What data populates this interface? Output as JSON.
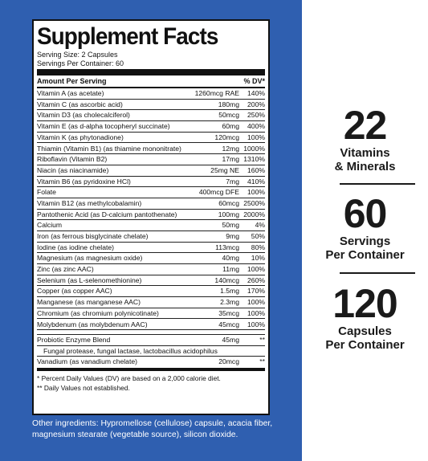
{
  "label": {
    "title": "Supplement Facts",
    "serving_size": "Serving Size: 2 Capsules",
    "servings_per_container": "Servings Per Container: 60",
    "header_amount": "Amount Per Serving",
    "header_dv": "% DV*",
    "nutrients": [
      {
        "name": "Vitamin A (as acetate)",
        "amount": "1260mcg RAE",
        "dv": "140%"
      },
      {
        "name": "Vitamin C (as ascorbic acid)",
        "amount": "180mg",
        "dv": "200%"
      },
      {
        "name": "Vitamin D3 (as cholecalciferol)",
        "amount": "50mcg",
        "dv": "250%"
      },
      {
        "name": "Vitamin E (as d-alpha tocopheryl succinate)",
        "amount": "60mg",
        "dv": "400%"
      },
      {
        "name": "Vitamin K (as phytonadione)",
        "amount": "120mcg",
        "dv": "100%"
      },
      {
        "name": "Thiamin (Vitamin B1) (as thiamine mononitrate)",
        "amount": "12mg",
        "dv": "1000%"
      },
      {
        "name": "Riboflavin (Vitamin B2)",
        "amount": "17mg",
        "dv": "1310%"
      },
      {
        "name": "Niacin (as niacinamide)",
        "amount": "25mg NE",
        "dv": "160%"
      },
      {
        "name": "Vitamin B6 (as pyridoxine HCl)",
        "amount": "7mg",
        "dv": "410%"
      },
      {
        "name": "Folate",
        "amount": "400mcg DFE",
        "dv": "100%"
      },
      {
        "name": "Vitamin B12 (as methylcobalamin)",
        "amount": "60mcg",
        "dv": "2500%"
      },
      {
        "name": "Pantothenic Acid (as D-calcium pantothenate)",
        "amount": "100mg",
        "dv": "2000%"
      },
      {
        "name": "Calcium",
        "amount": "50mg",
        "dv": "4%"
      },
      {
        "name": "Iron (as ferrous bisglycinate chelate)",
        "amount": "9mg",
        "dv": "50%"
      },
      {
        "name": "Iodine (as iodine chelate)",
        "amount": "113mcg",
        "dv": "80%"
      },
      {
        "name": "Magnesium (as magnesium oxide)",
        "amount": "40mg",
        "dv": "10%"
      },
      {
        "name": "Zinc (as zinc AAC)",
        "amount": "11mg",
        "dv": "100%"
      },
      {
        "name": "Selenium (as L-selenomethionine)",
        "amount": "140mcg",
        "dv": "260%"
      },
      {
        "name": "Copper (as copper AAC)",
        "amount": "1.5mg",
        "dv": "170%"
      },
      {
        "name": "Manganese (as manganese AAC)",
        "amount": "2.3mg",
        "dv": "100%"
      },
      {
        "name": "Chromium (as chromium polynicotinate)",
        "amount": "35mcg",
        "dv": "100%"
      },
      {
        "name": "Molybdenum (as molybdenum AAC)",
        "amount": "45mcg",
        "dv": "100%"
      }
    ],
    "probiotic": {
      "name": "Probiotic Enzyme Blend",
      "amount": "45mg",
      "dv": "**"
    },
    "probiotic_sub": "Fungal protease, fungal lactase, lactobacillus acidophilus",
    "vanadium": {
      "name": "Vanadium (as vanadium chelate)",
      "amount": "20mcg",
      "dv": "**"
    },
    "footnote_1": "* Percent Daily Values (DV) are based on a 2,000 calorie diet.",
    "footnote_2": "** Daily Values not established."
  },
  "other_ingredients": "Other ingredients: Hypromellose (cellulose) capsule, acacia fiber, magnesium stearate (vegetable source), silicon dioxide.",
  "stats": [
    {
      "number": "22",
      "line1": "Vitamins",
      "line2": "& Minerals"
    },
    {
      "number": "60",
      "line1": "Servings",
      "line2": "Per Container"
    },
    {
      "number": "120",
      "line1": "Capsules",
      "line2": "Per Container"
    }
  ],
  "colors": {
    "panel_blue": "#2f5fb0",
    "text_dark": "#1a1a1a"
  }
}
